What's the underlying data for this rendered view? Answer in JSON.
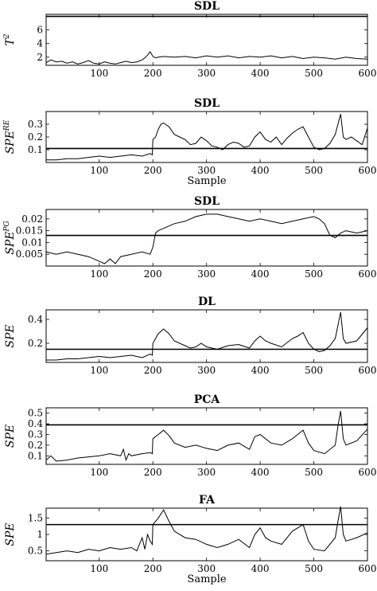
{
  "chart_data": [
    {
      "type": "line",
      "title": "SDL",
      "ylabel": "T",
      "ylabel_sup": "2",
      "xlabel": "",
      "xlim": [
        1,
        600
      ],
      "ylim": [
        0.8,
        8.3
      ],
      "yticks": [
        "2",
        "4",
        "6"
      ],
      "xticks": [
        "100",
        "200",
        "300",
        "400",
        "500",
        "600"
      ],
      "control_limit": 8.0,
      "series": [
        {
          "x": [
            1,
            10,
            20,
            30,
            40,
            50,
            60,
            70,
            80,
            90,
            100,
            110,
            120,
            130,
            140,
            150,
            160,
            170,
            180,
            185,
            190,
            195,
            200,
            205,
            210,
            220,
            240,
            260,
            280,
            300,
            320,
            340,
            360,
            380,
            400,
            420,
            440,
            460,
            480,
            500,
            520,
            540,
            560,
            580,
            600
          ],
          "y": [
            1.2,
            1.6,
            1.3,
            1.4,
            1.1,
            1.3,
            1.0,
            1.2,
            1.5,
            1.1,
            1.0,
            1.3,
            1.1,
            1.0,
            1.2,
            1.4,
            1.2,
            1.3,
            1.6,
            1.9,
            2.3,
            2.8,
            2.1,
            1.9,
            2.0,
            2.1,
            2.0,
            2.1,
            1.9,
            2.2,
            2.0,
            2.2,
            1.9,
            2.1,
            2.0,
            2.2,
            1.9,
            2.1,
            1.8,
            2.0,
            1.9,
            1.7,
            2.0,
            1.8,
            1.7
          ]
        }
      ]
    },
    {
      "type": "line",
      "title": "SDL",
      "ylabel": "SPE",
      "ylabel_sup": "RE",
      "xlabel": "Sample",
      "xlim": [
        1,
        600
      ],
      "ylim": [
        0.0,
        0.4
      ],
      "yticks": [
        "0.1",
        "0.2",
        "0.3"
      ],
      "xticks": [
        "100",
        "200",
        "300",
        "400",
        "500",
        "600"
      ],
      "control_limit": 0.11,
      "series": [
        {
          "x": [
            1,
            20,
            40,
            60,
            80,
            100,
            120,
            140,
            160,
            180,
            195,
            199,
            200,
            205,
            210,
            215,
            220,
            230,
            240,
            250,
            260,
            270,
            280,
            290,
            300,
            310,
            320,
            330,
            340,
            350,
            360,
            370,
            380,
            390,
            400,
            410,
            420,
            430,
            440,
            450,
            460,
            470,
            480,
            490,
            500,
            510,
            520,
            530,
            540,
            545,
            550,
            555,
            560,
            570,
            580,
            590,
            600
          ],
          "y": [
            0.02,
            0.02,
            0.03,
            0.03,
            0.04,
            0.05,
            0.04,
            0.05,
            0.06,
            0.05,
            0.07,
            0.06,
            0.18,
            0.2,
            0.26,
            0.3,
            0.31,
            0.28,
            0.22,
            0.2,
            0.18,
            0.14,
            0.15,
            0.2,
            0.17,
            0.13,
            0.12,
            0.1,
            0.14,
            0.16,
            0.15,
            0.12,
            0.13,
            0.2,
            0.24,
            0.18,
            0.16,
            0.2,
            0.14,
            0.19,
            0.23,
            0.26,
            0.28,
            0.2,
            0.12,
            0.1,
            0.11,
            0.15,
            0.22,
            0.3,
            0.38,
            0.2,
            0.18,
            0.2,
            0.17,
            0.14,
            0.27
          ]
        }
      ]
    },
    {
      "type": "line",
      "title": "SDL",
      "ylabel": "SPE",
      "ylabel_sup": "PG",
      "xlabel": "",
      "xlim": [
        1,
        600
      ],
      "ylim": [
        0.0,
        0.024
      ],
      "yticks": [
        "0.005",
        "0.01",
        "0.015",
        "0.02"
      ],
      "xticks": [
        "100",
        "200",
        "300",
        "400",
        "500",
        "600"
      ],
      "control_limit": 0.013,
      "series": [
        {
          "x": [
            1,
            20,
            40,
            60,
            80,
            100,
            110,
            120,
            130,
            140,
            160,
            180,
            195,
            200,
            205,
            210,
            220,
            240,
            260,
            280,
            300,
            320,
            340,
            360,
            380,
            400,
            420,
            440,
            460,
            480,
            500,
            510,
            520,
            530,
            540,
            550,
            560,
            580,
            600
          ],
          "y": [
            0.006,
            0.005,
            0.006,
            0.005,
            0.004,
            0.002,
            0.001,
            0.003,
            0.001,
            0.004,
            0.005,
            0.006,
            0.005,
            0.008,
            0.014,
            0.015,
            0.016,
            0.018,
            0.019,
            0.021,
            0.022,
            0.022,
            0.021,
            0.02,
            0.019,
            0.02,
            0.019,
            0.018,
            0.019,
            0.02,
            0.021,
            0.02,
            0.018,
            0.013,
            0.012,
            0.014,
            0.015,
            0.014,
            0.015
          ]
        }
      ]
    },
    {
      "type": "line",
      "title": "DL",
      "ylabel": "SPE",
      "ylabel_sup": "",
      "xlabel": "",
      "xlim": [
        1,
        600
      ],
      "ylim": [
        0.04,
        0.48
      ],
      "yticks": [
        "0.2",
        "0.4"
      ],
      "xticks": [
        "100",
        "200",
        "300",
        "400",
        "500",
        "600"
      ],
      "control_limit": 0.15,
      "series": [
        {
          "x": [
            1,
            20,
            40,
            60,
            80,
            100,
            120,
            140,
            160,
            180,
            195,
            199,
            200,
            210,
            220,
            230,
            240,
            250,
            260,
            270,
            280,
            290,
            300,
            320,
            340,
            360,
            380,
            390,
            400,
            410,
            420,
            440,
            460,
            470,
            480,
            490,
            500,
            510,
            520,
            530,
            540,
            545,
            550,
            555,
            560,
            580,
            600
          ],
          "y": [
            0.06,
            0.06,
            0.07,
            0.07,
            0.08,
            0.09,
            0.08,
            0.09,
            0.1,
            0.08,
            0.11,
            0.1,
            0.2,
            0.28,
            0.32,
            0.28,
            0.22,
            0.2,
            0.18,
            0.16,
            0.17,
            0.2,
            0.17,
            0.15,
            0.18,
            0.19,
            0.16,
            0.22,
            0.26,
            0.22,
            0.2,
            0.17,
            0.24,
            0.26,
            0.29,
            0.2,
            0.15,
            0.13,
            0.14,
            0.18,
            0.24,
            0.35,
            0.46,
            0.24,
            0.2,
            0.22,
            0.33
          ]
        }
      ]
    },
    {
      "type": "line",
      "title": "PCA",
      "ylabel": "SPE",
      "ylabel_sup": "",
      "xlabel": "",
      "xlim": [
        1,
        600
      ],
      "ylim": [
        0.02,
        0.55
      ],
      "yticks": [
        "0.1",
        "0.2",
        "0.3",
        "0.4",
        "0.5"
      ],
      "xticks": [
        "100",
        "200",
        "300",
        "400",
        "500",
        "600"
      ],
      "control_limit": 0.39,
      "series": [
        {
          "x": [
            1,
            10,
            20,
            40,
            60,
            80,
            100,
            120,
            140,
            145,
            150,
            155,
            160,
            180,
            195,
            199,
            200,
            210,
            220,
            230,
            240,
            260,
            280,
            300,
            320,
            340,
            360,
            380,
            390,
            400,
            420,
            440,
            460,
            470,
            480,
            490,
            500,
            520,
            540,
            545,
            550,
            555,
            560,
            580,
            600
          ],
          "y": [
            0.06,
            0.1,
            0.05,
            0.06,
            0.08,
            0.09,
            0.1,
            0.12,
            0.1,
            0.16,
            0.06,
            0.12,
            0.1,
            0.12,
            0.13,
            0.12,
            0.26,
            0.3,
            0.34,
            0.29,
            0.22,
            0.18,
            0.2,
            0.17,
            0.15,
            0.2,
            0.22,
            0.16,
            0.28,
            0.3,
            0.22,
            0.2,
            0.26,
            0.3,
            0.34,
            0.22,
            0.15,
            0.12,
            0.2,
            0.38,
            0.52,
            0.26,
            0.2,
            0.24,
            0.35
          ]
        }
      ]
    },
    {
      "type": "line",
      "title": "FA",
      "ylabel": "SPE",
      "ylabel_sup": "",
      "xlabel": "Sample",
      "xlim": [
        1,
        600
      ],
      "ylim": [
        0.2,
        1.8
      ],
      "yticks": [
        "0.5",
        "1",
        "1.5"
      ],
      "xticks": [
        "100",
        "200",
        "300",
        "400",
        "500",
        "600"
      ],
      "control_limit": 1.3,
      "series": [
        {
          "x": [
            1,
            20,
            40,
            60,
            80,
            100,
            120,
            140,
            160,
            170,
            180,
            185,
            190,
            195,
            199,
            200,
            210,
            220,
            230,
            240,
            260,
            280,
            300,
            320,
            340,
            360,
            380,
            390,
            400,
            410,
            420,
            440,
            460,
            470,
            480,
            490,
            500,
            520,
            540,
            545,
            550,
            555,
            560,
            580,
            600
          ],
          "y": [
            0.4,
            0.45,
            0.5,
            0.45,
            0.55,
            0.5,
            0.6,
            0.55,
            0.6,
            0.5,
            0.9,
            0.55,
            1.0,
            0.8,
            0.7,
            1.3,
            1.5,
            1.75,
            1.4,
            1.1,
            0.9,
            0.85,
            0.7,
            0.6,
            0.7,
            0.85,
            0.6,
            1.0,
            1.2,
            0.9,
            0.8,
            0.7,
            1.1,
            1.2,
            1.3,
            0.8,
            0.55,
            0.5,
            0.9,
            1.4,
            1.85,
            1.0,
            0.8,
            0.9,
            1.05
          ]
        }
      ]
    }
  ]
}
